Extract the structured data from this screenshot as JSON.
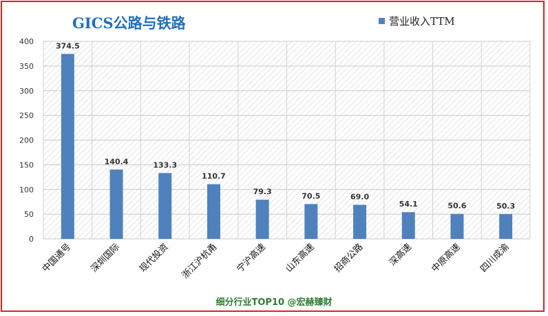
{
  "title": "GICS公路与铁路",
  "legend_label": "营业收入TTM",
  "footer": "细分行业TOP10 @宏赫臻财",
  "colors": {
    "bar": "#4f81bd",
    "border": "#e02020",
    "title": "#1f6fbf",
    "footer": "#2e7d32"
  },
  "chart_data": {
    "type": "bar",
    "title": "GICS公路与铁路",
    "xlabel": "",
    "ylabel": "",
    "ylim": [
      0,
      400
    ],
    "yticks": [
      0,
      50,
      100,
      150,
      200,
      250,
      300,
      350,
      400
    ],
    "grid": true,
    "legend_position": "top-right",
    "categories": [
      "中国通号",
      "深圳国际",
      "现代投资",
      "浙江沪杭甬",
      "宁沪高速",
      "山东高速",
      "招商公路",
      "深高速",
      "中原高速",
      "四川成渝"
    ],
    "series": [
      {
        "name": "营业收入TTM",
        "values": [
          374.5,
          140.4,
          133.3,
          110.7,
          79.3,
          70.5,
          69.0,
          54.1,
          50.6,
          50.3
        ]
      }
    ],
    "data_labels": [
      "374.5",
      "140.4",
      "133.3",
      "110.7",
      "79.3",
      "70.5",
      "69.0",
      "54.1",
      "50.6",
      "50.3"
    ]
  }
}
